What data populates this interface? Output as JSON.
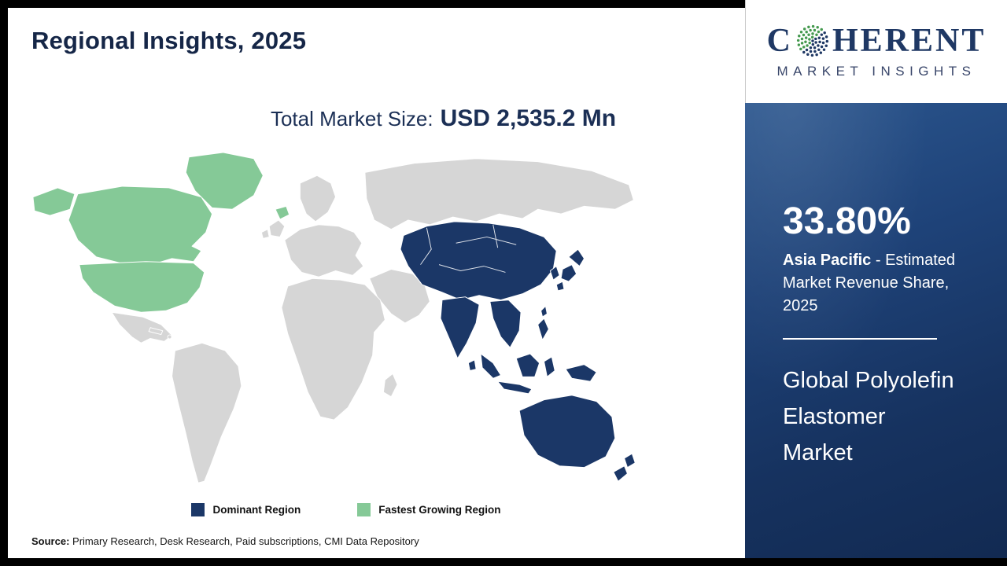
{
  "page": {
    "title": "Regional Insights, 2025"
  },
  "market_size": {
    "label": "Total Market Size:",
    "value": "USD 2,535.2 Mn"
  },
  "logo": {
    "letter_c": "C",
    "letters_rest": "HERENT",
    "subtitle": "MARKET INSIGHTS",
    "brand_navy": "#1f3864",
    "dot_green": "#44994e",
    "dot_blue": "#1f3864"
  },
  "map": {
    "colors": {
      "dominant": "#1b3767",
      "fastest_growing": "#85c997",
      "other": "#d6d6d6",
      "border": "#ffffff"
    }
  },
  "legend": {
    "dominant_label": "Dominant Region",
    "fastest_label": "Fastest Growing Region"
  },
  "panel": {
    "share_value": "33.80%",
    "region_name": "Asia Pacific",
    "region_desc": " - Estimated Market Revenue Share, 2025",
    "market_name": "Global Polyolefin Elastomer Market",
    "bg_top": "#27507f",
    "bg_bottom": "#122a52"
  },
  "source": {
    "label": "Source:",
    "text": " Primary Research, Desk Research, Paid subscriptions, CMI Data Repository"
  },
  "chart_data": {
    "type": "choropleth_map",
    "title": "Regional Insights, 2025",
    "total_market_size": "USD 2,535.2 Mn",
    "total_market_size_usd_mn": 2535.2,
    "market": "Global Polyolefin Elastomer Market",
    "year": 2025,
    "regions": [
      {
        "name": "Asia Pacific",
        "classification": "Dominant Region",
        "estimated_market_revenue_share_2025_pct": 33.8
      },
      {
        "name": "North America",
        "classification": "Fastest Growing Region"
      },
      {
        "name": "Rest of World",
        "classification": "Other"
      }
    ],
    "legend": [
      "Dominant Region",
      "Fastest Growing Region"
    ],
    "legend_position": "bottom-center"
  }
}
